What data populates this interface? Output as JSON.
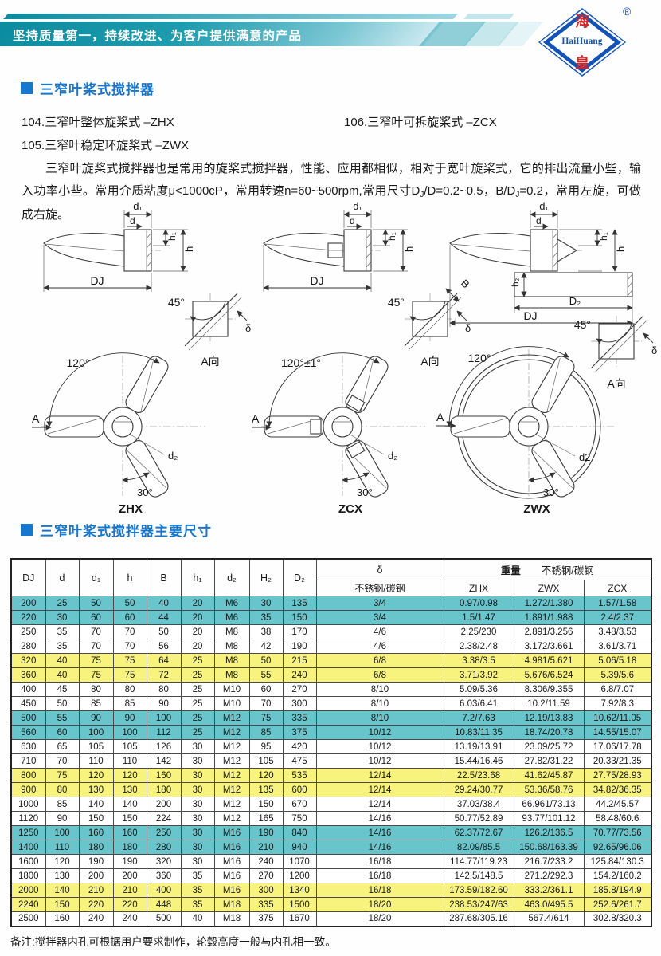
{
  "banner": {
    "slogan": "坚持质量第一，持续改进、为客户提供满意的产品",
    "logo": {
      "top": "海",
      "middle": "HaiHuang",
      "bottom": "皇",
      "reg": "®"
    }
  },
  "section1": {
    "title": "三窄叶桨式搅拌器"
  },
  "models": [
    "104.三窄叶整体旋桨式 –ZHX",
    "105.三窄叶稳定环旋桨式 –ZWX",
    "106.三窄叶可拆旋桨式 –ZCX"
  ],
  "paragraph": {
    "seg1": "三窄叶旋桨式搅拌器也是常用的旋桨式搅拌器，性能、应用都相似，相对于宽叶旋桨式，它的排出流量小些，输入功率小些。常用介质粘度μ<1000cP，常用转速n=60~500rpm,常用尺寸D",
    "sub1": "J",
    "seg2": "/D=0.2~0.5，B/D",
    "sub2": "J",
    "seg3": "=0.2，常用左旋，可做成右旋。"
  },
  "diagrams": {
    "panels": [
      {
        "name": "ZHX",
        "side": {
          "d1": "d₁",
          "d": "d",
          "h1": "h₁",
          "h": "h",
          "dj": "DJ"
        },
        "detail": {
          "angle": "45°",
          "delta": "δ",
          "view": "A向"
        },
        "front": {
          "arc": "120°",
          "a": "A",
          "d2": "d₂",
          "tilt": "30°"
        }
      },
      {
        "name": "ZCX",
        "side": {
          "d1": "d₁",
          "d": "d",
          "h1": "h₁",
          "h": "h",
          "dj": "DJ"
        },
        "detail": {
          "angle": "45°",
          "b": "B",
          "delta": "δ",
          "view": "A向"
        },
        "front": {
          "arc": "120°±1°",
          "a": "A",
          "d2": "d₂",
          "tilt": "30°"
        }
      },
      {
        "name": "ZWX",
        "side": {
          "d1": "d₁",
          "d": "d",
          "h1": "h₁",
          "h": "h",
          "h2": "h₂",
          "d2dim": "D₂",
          "dj": "DJ"
        },
        "detail": {
          "angle": "45°",
          "delta": "δ",
          "view": "A向"
        },
        "front": {
          "arc": "120°",
          "a": "A",
          "d2": "d2",
          "tilt": "30°"
        }
      }
    ]
  },
  "section2": {
    "title": "三窄叶桨式搅拌器主要尺寸"
  },
  "table": {
    "header": {
      "dims": [
        "DJ",
        "d",
        "d₁",
        "h",
        "B",
        "h₁",
        "d₂",
        "H₂",
        "D₂"
      ],
      "delta": "δ",
      "steel": "不锈钢/碳钢",
      "weight": "重量",
      "weight_steel": "不锈钢/碳钢",
      "models": [
        "ZHX",
        "ZWX",
        "ZCX"
      ]
    },
    "rows": [
      {
        "bg": "teal",
        "c": [
          "200",
          "25",
          "50",
          "50",
          "40",
          "20",
          "M6",
          "30",
          "135",
          "3/4",
          "0.97/0.98",
          "1.272/1.380",
          "1.57/1.58"
        ]
      },
      {
        "bg": "teal",
        "c": [
          "220",
          "30",
          "60",
          "60",
          "44",
          "20",
          "M6",
          "35",
          "150",
          "3/4",
          "1.5/1.47",
          "1.891/1.988",
          "2.4/2.37"
        ]
      },
      {
        "bg": "white",
        "c": [
          "250",
          "35",
          "70",
          "70",
          "50",
          "20",
          "M8",
          "38",
          "170",
          "4/6",
          "2.25/230",
          "2.891/3.256",
          "3.48/3.53"
        ]
      },
      {
        "bg": "white",
        "c": [
          "280",
          "35",
          "70",
          "70",
          "56",
          "20",
          "M8",
          "42",
          "190",
          "4/6",
          "2.38/2.48",
          "3.172/3.661",
          "3.61/3.71"
        ]
      },
      {
        "bg": "yellow",
        "c": [
          "320",
          "40",
          "75",
          "75",
          "64",
          "25",
          "M8",
          "50",
          "215",
          "6/8",
          "3.38/3.5",
          "4.981/5.621",
          "5.06/5.18"
        ]
      },
      {
        "bg": "yellow",
        "c": [
          "360",
          "40",
          "75",
          "75",
          "72",
          "25",
          "M8",
          "55",
          "240",
          "6/8",
          "3.71/3.92",
          "5.676/6.524",
          "5.39/5.6"
        ]
      },
      {
        "bg": "white",
        "c": [
          "400",
          "45",
          "80",
          "80",
          "80",
          "25",
          "M10",
          "60",
          "270",
          "8/10",
          "5.09/5.36",
          "8.306/9.355",
          "6.8/7.07"
        ]
      },
      {
        "bg": "white",
        "c": [
          "450",
          "50",
          "85",
          "85",
          "90",
          "25",
          "M10",
          "70",
          "300",
          "8/10",
          "6.03/6.41",
          "10.2/11.59",
          "7.92/8.3"
        ]
      },
      {
        "bg": "teal",
        "c": [
          "500",
          "55",
          "90",
          "90",
          "100",
          "25",
          "M12",
          "75",
          "335",
          "8/10",
          "7.2/7.63",
          "12.19/13.83",
          "10.62/11.05"
        ]
      },
      {
        "bg": "teal",
        "c": [
          "560",
          "60",
          "100",
          "100",
          "112",
          "25",
          "M12",
          "85",
          "375",
          "10/12",
          "10.83/11.35",
          "18.74/20.78",
          "14.55/15.07"
        ]
      },
      {
        "bg": "white",
        "c": [
          "630",
          "65",
          "105",
          "105",
          "126",
          "30",
          "M12",
          "95",
          "420",
          "10/12",
          "13.19/13.91",
          "23.09/25.72",
          "17.06/17.78"
        ]
      },
      {
        "bg": "white",
        "c": [
          "710",
          "70",
          "110",
          "110",
          "142",
          "30",
          "M12",
          "105",
          "475",
          "10/12",
          "15.44/16.46",
          "27.82/31.22",
          "20.33/21.35"
        ]
      },
      {
        "bg": "yellow",
        "c": [
          "800",
          "75",
          "120",
          "120",
          "160",
          "30",
          "M12",
          "120",
          "535",
          "12/14",
          "22.5/23.68",
          "41.62/45.87",
          "27.75/28.93"
        ]
      },
      {
        "bg": "yellow",
        "c": [
          "900",
          "80",
          "130",
          "130",
          "180",
          "30",
          "M12",
          "135",
          "600",
          "12/14",
          "29.24/30.77",
          "53.36/58.76",
          "34.82/36.35"
        ]
      },
      {
        "bg": "white",
        "c": [
          "1000",
          "85",
          "140",
          "140",
          "200",
          "30",
          "M12",
          "150",
          "670",
          "12/14",
          "37.03/38.4",
          "66.961/73.13",
          "44.2/45.57"
        ]
      },
      {
        "bg": "white",
        "c": [
          "1120",
          "90",
          "150",
          "150",
          "224",
          "30",
          "M12",
          "165",
          "750",
          "14/16",
          "50.77/52.89",
          "93.77/101.12",
          "58.48/60.6"
        ]
      },
      {
        "bg": "teal",
        "c": [
          "1250",
          "100",
          "160",
          "160",
          "250",
          "30",
          "M16",
          "190",
          "840",
          "14/16",
          "62.37/72.67",
          "126.2/136.5",
          "70.77/73.56"
        ]
      },
      {
        "bg": "teal",
        "c": [
          "1400",
          "110",
          "180",
          "180",
          "280",
          "30",
          "M16",
          "210",
          "940",
          "14/16",
          "82.09/85.5",
          "150.68/163.39",
          "92.65/96.06"
        ]
      },
      {
        "bg": "white",
        "c": [
          "1600",
          "120",
          "190",
          "190",
          "320",
          "30",
          "M16",
          "240",
          "1070",
          "16/18",
          "114.77/119.23",
          "216.7/233.2",
          "125.84/130.3"
        ]
      },
      {
        "bg": "white",
        "c": [
          "1800",
          "130",
          "200",
          "200",
          "360",
          "35",
          "M16",
          "270",
          "1200",
          "16/18",
          "142.5/148.5",
          "271.2/292.3",
          "154.2/160.2"
        ]
      },
      {
        "bg": "yellow",
        "c": [
          "2000",
          "140",
          "210",
          "210",
          "400",
          "35",
          "M16",
          "300",
          "1340",
          "16/18",
          "173.59/182.60",
          "333.2/361.1",
          "185.8/194.9"
        ]
      },
      {
        "bg": "yellow",
        "c": [
          "2240",
          "150",
          "220",
          "220",
          "448",
          "35",
          "M18",
          "335",
          "1500",
          "18/20",
          "238.53/247/63",
          "463.0/495.5",
          "252.6/261.7"
        ]
      },
      {
        "bg": "white",
        "c": [
          "2500",
          "160",
          "240",
          "240",
          "500",
          "40",
          "M18",
          "375",
          "1670",
          "18/20",
          "287.68/305.16",
          "567.4/614",
          "302.8/320.3"
        ]
      }
    ]
  },
  "footnote": "备注:搅拌器内孔可根据用户要求制作，轮毂高度一般与内孔相一致。"
}
